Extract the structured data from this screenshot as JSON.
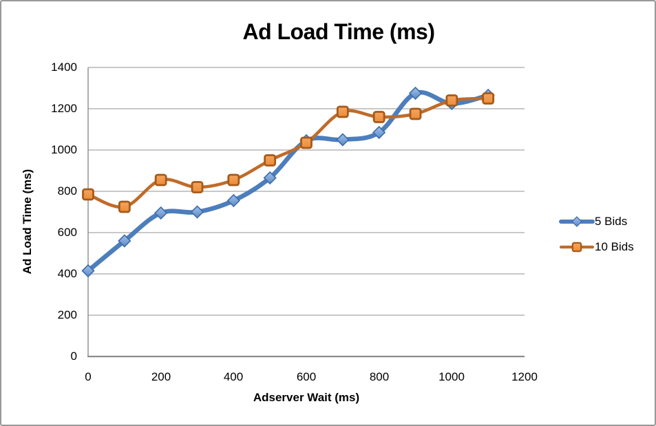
{
  "chart_data": {
    "type": "line",
    "title": "Ad Load Time (ms)",
    "xlabel": "Adserver Wait (ms)",
    "ylabel": "Ad Load Time (ms)",
    "x": [
      0,
      100,
      200,
      300,
      400,
      500,
      600,
      700,
      800,
      900,
      1000,
      1100
    ],
    "series": [
      {
        "name": "5 Bids",
        "marker": "diamond",
        "line_color": "#4d7ebc",
        "line_width": 6.6,
        "marker_fill_light": "#a3c0e8",
        "marker_fill_dark": "#5c8ac8",
        "marker_stroke": "#3c6ca9",
        "values": [
          415,
          560,
          695,
          700,
          755,
          865,
          1045,
          1050,
          1085,
          1275,
          1225,
          1265
        ]
      },
      {
        "name": "10 Bids",
        "marker": "square",
        "line_color": "#c06b29",
        "line_width": 4.6,
        "marker_fill_light": "#f5a55f",
        "marker_fill_dark": "#ec8c38",
        "marker_stroke": "#a55a1a",
        "values": [
          785,
          725,
          855,
          820,
          855,
          950,
          1035,
          1185,
          1160,
          1175,
          1240,
          1250
        ]
      }
    ],
    "xlim": [
      0,
      1200
    ],
    "ylim": [
      0,
      1400
    ],
    "x_ticks": [
      0,
      200,
      400,
      600,
      800,
      1000,
      1200
    ],
    "y_ticks": [
      0,
      200,
      400,
      600,
      800,
      1000,
      1200,
      1400
    ],
    "grid": true,
    "legend_position": "right",
    "gridline_color": "#a8a8a8",
    "axis_color": "#8c8c8c",
    "smooth_lines": true
  }
}
